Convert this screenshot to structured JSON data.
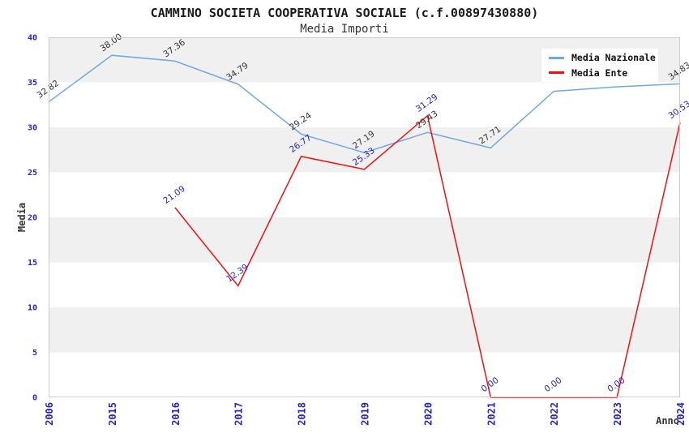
{
  "header": {
    "title": "CAMMINO SOCIETA COOPERATIVA SOCIALE (c.f.00897430880)",
    "subtitle": "Media Importi"
  },
  "legend": {
    "position": "top-right",
    "items": [
      {
        "label": "Media Nazionale",
        "color": "#70a8e0"
      },
      {
        "label": "Media Ente",
        "color": "#ee1111"
      }
    ]
  },
  "axes": {
    "y_title": "Media",
    "x_title": "Anno",
    "y_ticks": [
      0,
      5,
      10,
      15,
      20,
      25,
      30,
      35,
      40
    ],
    "tick_color": "#2323cc",
    "axis_title_color": "#333333",
    "border_color": "#cccccc"
  },
  "chart_data": {
    "type": "line",
    "title": "CAMMINO SOCIETA COOPERATIVA SOCIALE (c.f.00897430880)",
    "subtitle": "Media Importi",
    "xlabel": "Anno",
    "ylabel": "Media",
    "ylim": [
      0,
      40
    ],
    "y_tick_step": 5,
    "grid": "alternating-horizontal-bands",
    "band_colors": [
      "#ffffff",
      "#f0f0f0"
    ],
    "legend_position": "top-right",
    "categories": [
      "2006",
      "2015",
      "2016",
      "2017",
      "2018",
      "2019",
      "2020",
      "2021",
      "2022",
      "2023",
      "2024"
    ],
    "series": [
      {
        "name": "Media Nazionale",
        "color": "#70a8e0",
        "label_color": "#333333",
        "values": [
          32.82,
          38.0,
          37.36,
          34.79,
          29.24,
          27.19,
          29.43,
          27.71,
          34.0,
          34.5,
          34.83
        ],
        "point_labels": [
          "32.82",
          "38.00",
          "37.36",
          "34.79",
          "29.24",
          "27.19",
          "29.43",
          "27.71",
          "",
          "",
          "34.83"
        ]
      },
      {
        "name": "Media Ente",
        "color": "#ee1111",
        "label_color": "#2323cc",
        "values": [
          null,
          null,
          21.09,
          12.39,
          26.77,
          25.33,
          31.29,
          0.0,
          0.0,
          0.0,
          30.53
        ],
        "point_labels": [
          "",
          "",
          "21.09",
          "12.39",
          "26.77",
          "25.33",
          "31.29",
          "0.00",
          "0.00",
          "0.00",
          "30.53"
        ]
      }
    ]
  }
}
